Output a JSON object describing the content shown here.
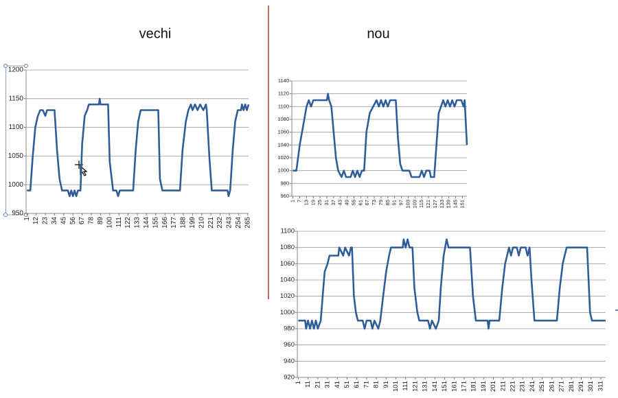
{
  "chart_data": [
    {
      "type": "line",
      "title": "vechi",
      "color": "#2f5d99",
      "x": [
        1,
        5,
        8,
        11,
        14,
        17,
        20,
        23,
        25,
        34,
        37,
        40,
        43,
        50,
        52,
        54,
        56,
        58,
        60,
        62,
        65,
        67,
        70,
        73,
        75,
        87,
        88,
        89,
        98,
        100,
        104,
        108,
        110,
        112,
        128,
        131,
        134,
        137,
        158,
        160,
        163,
        184,
        187,
        191,
        194,
        197,
        199,
        202,
        205,
        208,
        212,
        215,
        216,
        219,
        222,
        241,
        242,
        244,
        247,
        250,
        253,
        257,
        258,
        260,
        262,
        264,
        266
      ],
      "values": [
        990,
        990,
        1050,
        1100,
        1120,
        1130,
        1130,
        1120,
        1130,
        1130,
        1060,
        1010,
        990,
        990,
        980,
        990,
        980,
        990,
        980,
        990,
        990,
        1070,
        1120,
        1130,
        1140,
        1140,
        1150,
        1140,
        1140,
        1040,
        990,
        990,
        980,
        990,
        990,
        1060,
        1110,
        1130,
        1130,
        1010,
        990,
        990,
        1060,
        1110,
        1130,
        1140,
        1130,
        1140,
        1130,
        1140,
        1130,
        1140,
        1130,
        1050,
        990,
        990,
        980,
        990,
        1060,
        1110,
        1130,
        1130,
        1140,
        1130,
        1140,
        1130,
        1140
      ],
      "xlim": [
        0,
        266
      ],
      "xticks": [
        1,
        12,
        23,
        34,
        45,
        56,
        67,
        78,
        89,
        100,
        111,
        122,
        133,
        144,
        155,
        166,
        177,
        188,
        199,
        210,
        221,
        232,
        243,
        254,
        265
      ],
      "ylim": [
        950,
        1200
      ],
      "yticks": [
        950,
        1000,
        1050,
        1100,
        1150,
        1200
      ],
      "grid": true
    },
    {
      "type": "line",
      "title": "nou",
      "color": "#2f5d99",
      "x": [
        1,
        4,
        7,
        10,
        13,
        15,
        17,
        19,
        31,
        32,
        33,
        35,
        37,
        39,
        41,
        44,
        46,
        48,
        52,
        54,
        56,
        58,
        60,
        62,
        64,
        66,
        69,
        72,
        75,
        77,
        79,
        81,
        83,
        85,
        87,
        92,
        94,
        96,
        98,
        104,
        106,
        113,
        115,
        117,
        119,
        122,
        123,
        126,
        128,
        130,
        132,
        134,
        136,
        138,
        140,
        142,
        144,
        146,
        150,
        152,
        153,
        155
      ],
      "values": [
        1000,
        1000,
        1040,
        1070,
        1100,
        1110,
        1100,
        1110,
        1110,
        1120,
        1110,
        1100,
        1060,
        1020,
        1000,
        990,
        1000,
        990,
        990,
        1000,
        990,
        1000,
        990,
        1000,
        1000,
        1060,
        1090,
        1100,
        1110,
        1100,
        1110,
        1100,
        1110,
        1100,
        1110,
        1110,
        1050,
        1010,
        1000,
        1000,
        990,
        990,
        1000,
        990,
        1000,
        1000,
        990,
        990,
        1040,
        1090,
        1100,
        1110,
        1100,
        1110,
        1100,
        1110,
        1100,
        1110,
        1110,
        1100,
        1110,
        1040
      ],
      "xlim": [
        0,
        155
      ],
      "xticks": [
        1,
        7,
        13,
        19,
        25,
        31,
        37,
        43,
        49,
        55,
        61,
        67,
        73,
        79,
        85,
        91,
        97,
        103,
        109,
        115,
        121,
        127,
        133,
        139,
        145,
        151
      ],
      "ylim": [
        960,
        1140
      ],
      "yticks": [
        960,
        980,
        1000,
        1020,
        1040,
        1060,
        1080,
        1100,
        1120,
        1140
      ],
      "grid": true
    },
    {
      "type": "line",
      "color": "#2f5d99",
      "x": [
        1,
        8,
        9,
        11,
        13,
        15,
        17,
        19,
        21,
        24,
        26,
        28,
        31,
        33,
        42,
        43,
        47,
        49,
        53,
        55,
        56,
        58,
        60,
        62,
        67,
        69,
        71,
        75,
        77,
        79,
        83,
        85,
        88,
        91,
        94,
        96,
        108,
        109,
        111,
        113,
        115,
        118,
        120,
        123,
        125,
        134,
        136,
        138,
        142,
        145,
        147,
        150,
        153,
        155,
        177,
        180,
        183,
        195,
        196,
        197,
        207,
        210,
        213,
        215,
        217,
        219,
        221,
        225,
        227,
        229,
        234,
        236,
        238,
        240,
        243,
        266,
        269,
        272,
        274,
        276,
        297,
        300,
        302,
        316
      ],
      "values": [
        990,
        990,
        980,
        990,
        980,
        990,
        980,
        990,
        980,
        990,
        1020,
        1050,
        1060,
        1070,
        1070,
        1080,
        1070,
        1080,
        1070,
        1080,
        1080,
        1020,
        1000,
        990,
        990,
        980,
        990,
        990,
        980,
        990,
        980,
        990,
        1020,
        1050,
        1070,
        1080,
        1080,
        1090,
        1080,
        1090,
        1080,
        1080,
        1030,
        1000,
        990,
        990,
        980,
        990,
        980,
        990,
        1030,
        1070,
        1090,
        1080,
        1080,
        1020,
        990,
        990,
        980,
        990,
        990,
        1030,
        1060,
        1070,
        1080,
        1070,
        1080,
        1080,
        1070,
        1080,
        1080,
        1070,
        1080,
        1040,
        990,
        990,
        1030,
        1060,
        1070,
        1080,
        1080,
        1000,
        990,
        990
      ],
      "xlim": [
        0,
        316
      ],
      "xticks": [
        1,
        11,
        21,
        31,
        41,
        51,
        61,
        71,
        81,
        91,
        101,
        111,
        121,
        131,
        141,
        151,
        161,
        171,
        181,
        191,
        201,
        211,
        221,
        231,
        241,
        251,
        261,
        271,
        281,
        291,
        301,
        311
      ],
      "ylim": [
        920,
        1100
      ],
      "yticks": [
        920,
        940,
        960,
        980,
        1000,
        1020,
        1040,
        1060,
        1080,
        1100
      ],
      "grid": true
    }
  ]
}
